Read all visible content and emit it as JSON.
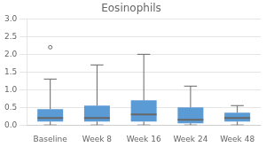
{
  "chart_data": {
    "type": "box",
    "title": "Eosinophils",
    "categories": [
      "Baseline",
      "Week 8",
      "Week 16",
      "Week 24",
      "Week 48"
    ],
    "boxes": [
      {
        "q1": 0.1,
        "median": 0.2,
        "q3": 0.45,
        "whislo": 0.0,
        "whishi": 1.3,
        "fliers": [
          2.2
        ]
      },
      {
        "q1": 0.1,
        "median": 0.2,
        "q3": 0.55,
        "whislo": 0.0,
        "whishi": 1.7,
        "fliers": []
      },
      {
        "q1": 0.1,
        "median": 0.3,
        "q3": 0.7,
        "whislo": 0.0,
        "whishi": 2.0,
        "fliers": []
      },
      {
        "q1": 0.05,
        "median": 0.15,
        "q3": 0.5,
        "whislo": 0.0,
        "whishi": 1.1,
        "fliers": []
      },
      {
        "q1": 0.1,
        "median": 0.2,
        "q3": 0.35,
        "whislo": 0.0,
        "whishi": 0.55,
        "fliers": []
      }
    ],
    "color": "#5B9BD5",
    "ylim": [
      0.0,
      3.0
    ],
    "yticks": [
      {
        "value": 0.0,
        "label": "0.0"
      },
      0.5,
      {
        "value": 1.0,
        "label": "1.0"
      },
      1.5,
      {
        "value": 2.0,
        "label": "2.0"
      },
      2.5,
      {
        "value": 3.0,
        "label": "3.0"
      }
    ],
    "grid": true
  }
}
